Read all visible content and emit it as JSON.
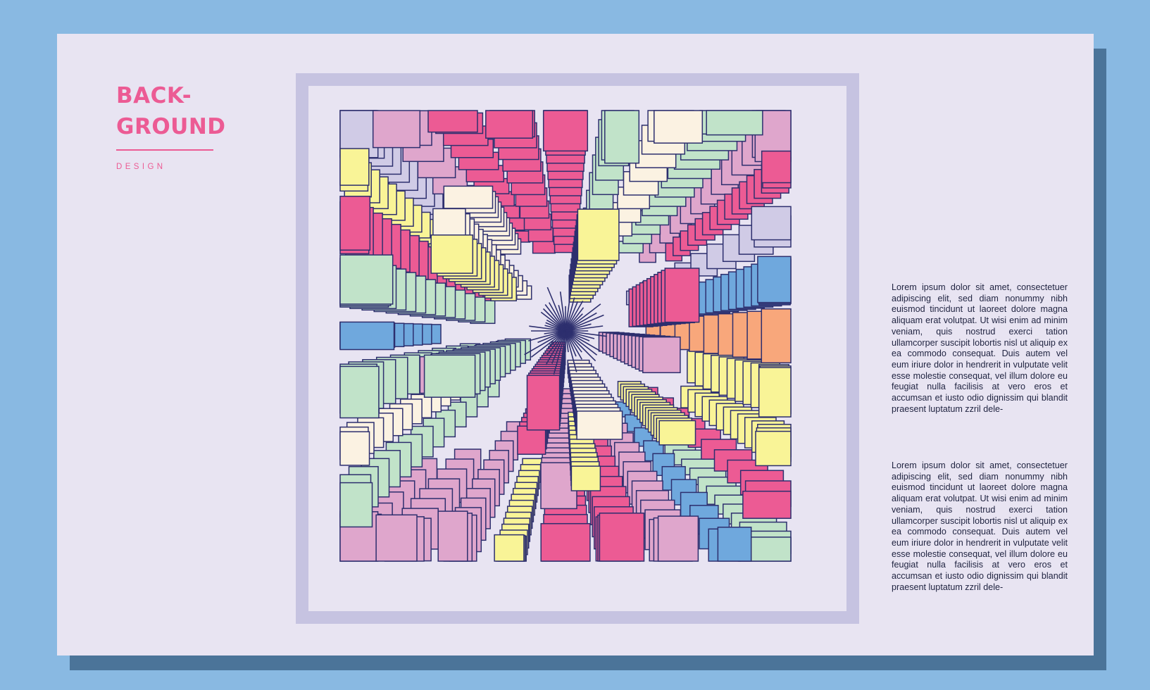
{
  "heading": {
    "line1": "BACK-",
    "line2": "GROUND",
    "subtitle": "DESIGN"
  },
  "paragraphs": [
    "Lorem ipsum dolor sit amet, consectetuer adipiscing elit, sed diam nonummy nibh euismod tincidunt ut laoreet dolore magna aliquam erat volutpat. Ut wisi enim ad minim veniam, quis nostrud exerci tation ullamcorper suscipit lobortis nisl ut aliquip ex ea commodo consequat. Duis autem vel eum iriure dolor in hendrerit in vulputate velit esse molestie consequat, vel illum dolore eu feugiat nulla facilisis at vero eros et accumsan et iusto odio dignissim qui blandit praesent luptatum zzril dele-",
    "Lorem ipsum dolor sit amet, consectetuer adipiscing elit, sed diam nonummy nibh euismod tincidunt ut laoreet dolore magna aliquam erat volutpat. Ut wisi enim ad minim veniam, quis nostrud exerci tation ullamcorper suscipit lobortis nisl ut aliquip ex ea commodo consequat. Duis autem vel eum iriure dolor in hendrerit in vulputate velit esse molestie consequat, vel illum dolore eu feugiat nulla facilisis at vero eros et accumsan et iusto odio dignissim qui blandit praesent luptatum zzril dele-"
  ],
  "colors": {
    "page_background": "#89b9e2",
    "card": "#e8e4f2",
    "card_shadow": "#4b7499",
    "frame": "#c6c3e1",
    "accent": "#ec5b94",
    "outline": "#2d2f6e",
    "palette": [
      "#ec5b94",
      "#f8a77b",
      "#f9f497",
      "#c1e3c9",
      "#6fa8dd",
      "#dfa6cc",
      "#d0cbe6",
      "#fbf2e2"
    ]
  },
  "artwork": {
    "description_icon": "radial-perspective-blocks-pattern"
  }
}
